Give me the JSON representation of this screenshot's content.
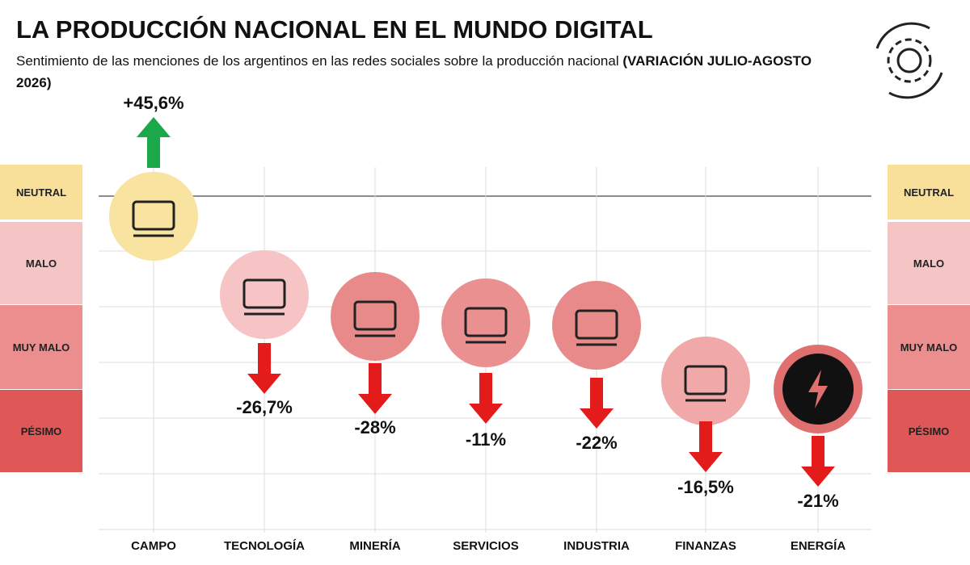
{
  "header": {
    "title": "LA PRODUCCIÓN NACIONAL EN EL MUNDO DIGITAL",
    "subtitle": "Sentimiento de las menciones de los argentinos en las redes sociales sobre la producción nacional",
    "subtitle_bold": "(VARIACIÓN JULIO-AGOSTO 2026)"
  },
  "bands": [
    "NEUTRAL",
    "MALO",
    "MUY MALO",
    "PÉSIMO"
  ],
  "items": [
    {
      "category": "CAMPO",
      "change": "+45,6%"
    },
    {
      "category": "TECNOLOGÍA",
      "change": "-26,7%"
    },
    {
      "category": "MINERÍA",
      "change": "-28%"
    },
    {
      "category": "SERVICIOS",
      "change": "-11%"
    },
    {
      "category": "INDUSTRIA",
      "change": "-22%"
    },
    {
      "category": "FINANZAS",
      "change": "-16,5%"
    },
    {
      "category": "ENERGÍA",
      "change": "-21%"
    }
  ]
}
